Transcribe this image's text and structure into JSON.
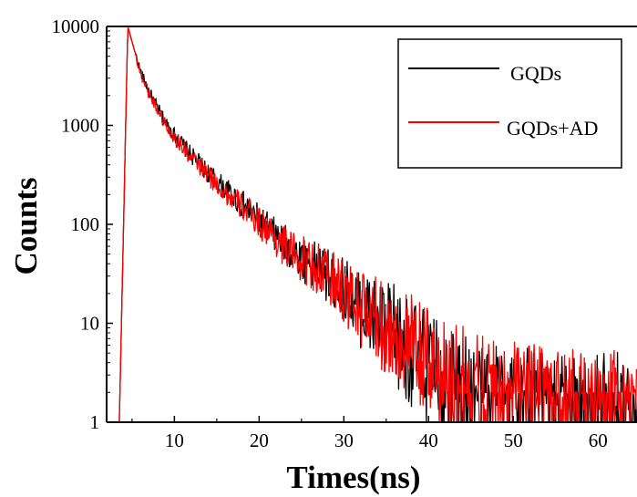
{
  "chart_data": {
    "type": "line",
    "title": "",
    "xlabel": "Times(ns)",
    "ylabel": "Counts",
    "xlim": [
      2,
      64.6
    ],
    "ylim": [
      1,
      10000
    ],
    "yscale": "log",
    "x_ticks": [
      10,
      20,
      30,
      40,
      50,
      60
    ],
    "y_ticks": [
      1,
      10,
      100,
      1000,
      10000
    ],
    "x_tick_labels": [
      "10",
      "20",
      "30",
      "40",
      "50",
      "60"
    ],
    "y_tick_labels": [
      "1",
      "10",
      "100",
      "1000",
      "10000"
    ],
    "grid": false,
    "legend_position": "top-right",
    "series": [
      {
        "name": "GQDs",
        "color": "#000000",
        "x": [
          3.5,
          4.0,
          4.5,
          5.0,
          6,
          7,
          8,
          9,
          10,
          12,
          14,
          16,
          18,
          20,
          22,
          24,
          26,
          28,
          30,
          32,
          34,
          36,
          38,
          40,
          42,
          44,
          46,
          48,
          50,
          52,
          54,
          56,
          58,
          60,
          62,
          64
        ],
        "values": [
          1,
          100,
          10000,
          7000,
          3500,
          2200,
          1500,
          1050,
          800,
          500,
          330,
          225,
          160,
          110,
          75,
          52,
          40,
          30,
          22,
          14,
          10,
          7,
          5,
          3.5,
          2.8,
          2.2,
          2,
          1.8,
          1.6,
          1.6,
          1.5,
          1.5,
          1.5,
          1.5,
          1.5,
          1.5
        ]
      },
      {
        "name": "GQDs+AD",
        "color": "#ff0000",
        "x": [
          3.5,
          4.0,
          4.5,
          5.0,
          6,
          7,
          8,
          9,
          10,
          12,
          14,
          16,
          18,
          20,
          22,
          24,
          26,
          28,
          30,
          32,
          34,
          36,
          38,
          40,
          42,
          44,
          46,
          48,
          50,
          52,
          54,
          56,
          58,
          60,
          62,
          64
        ],
        "values": [
          1,
          100,
          10000,
          7000,
          3400,
          2100,
          1450,
          1000,
          760,
          470,
          310,
          210,
          150,
          105,
          72,
          50,
          40,
          30,
          21,
          14,
          10,
          7.5,
          5.5,
          4,
          3.2,
          2.7,
          2.3,
          2,
          1.9,
          1.8,
          1.7,
          1.7,
          1.6,
          1.6,
          1.6,
          1.6
        ]
      }
    ]
  }
}
